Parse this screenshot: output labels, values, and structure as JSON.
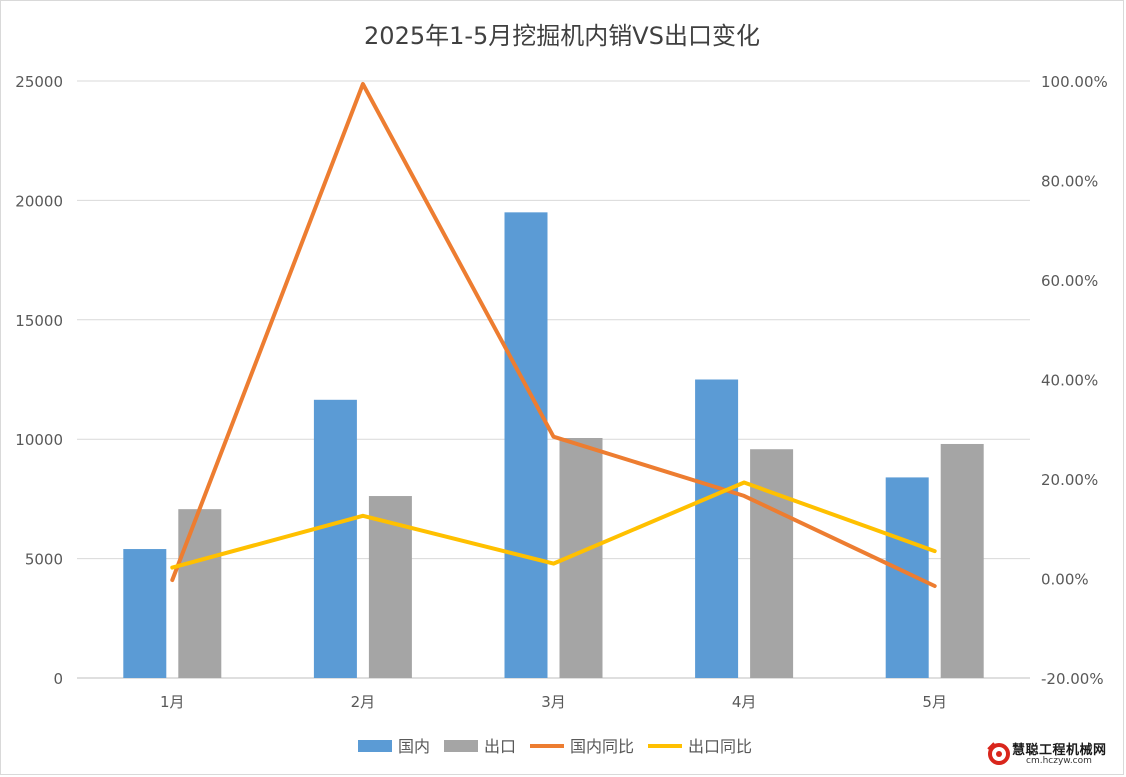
{
  "chart_data": {
    "type": "bar",
    "title": "2025年1-5月挖掘机内销VS出口变化",
    "categories": [
      "1月",
      "2月",
      "3月",
      "4月",
      "5月"
    ],
    "series": [
      {
        "name": "国内",
        "type": "bar",
        "axis": "left",
        "color": "#5b9bd5",
        "values": [
          5400,
          11650,
          19500,
          12500,
          8400
        ]
      },
      {
        "name": "出口",
        "type": "bar",
        "axis": "left",
        "color": "#a5a5a5",
        "values": [
          7070,
          7620,
          10050,
          9580,
          9800
        ]
      },
      {
        "name": "国内同比",
        "type": "line",
        "axis": "right",
        "color": "#ed7d31",
        "values": [
          -0.3,
          99.4,
          28.5,
          16.6,
          -1.5
        ]
      },
      {
        "name": "出口同比",
        "type": "line",
        "axis": "right",
        "color": "#ffc000",
        "values": [
          2.2,
          12.6,
          3.0,
          19.3,
          5.5
        ]
      }
    ],
    "left_axis": {
      "min": 0,
      "max": 25000,
      "ticks": [
        "0",
        "5000",
        "10000",
        "15000",
        "20000",
        "25000"
      ]
    },
    "right_axis": {
      "min": -20,
      "max": 100,
      "ticks": [
        "-20.00%",
        "0.00%",
        "20.00%",
        "40.00%",
        "60.00%",
        "80.00%",
        "100.00%"
      ]
    },
    "gridlines": true,
    "legend_position": "bottom"
  },
  "watermark": {
    "title": "慧聪工程机械网",
    "url": "cm.hczyw.com"
  }
}
